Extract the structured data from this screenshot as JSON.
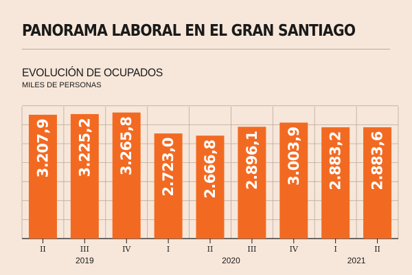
{
  "header": {
    "title": "PANORAMA LABORAL EN EL GRAN SANTIAGO",
    "subtitle": "EVOLUCIÓN DE OCUPADOS",
    "units": "MILES DE PERSONAS"
  },
  "colors": {
    "bar": "#f26a22",
    "background": "#f7e7da",
    "grid": "#b9a898",
    "text": "#1a1a1a",
    "label": "#ffffff"
  },
  "chart_data": {
    "type": "bar",
    "title": "EVOLUCIÓN DE OCUPADOS",
    "ylabel": "MILES DE PERSONAS",
    "categories": [
      "II",
      "III",
      "IV",
      "I",
      "II",
      "III",
      "IV",
      "I",
      "II"
    ],
    "values": [
      3207.9,
      3225.2,
      3265.8,
      2723.0,
      2666.8,
      2896.1,
      3003.9,
      2883.2,
      2883.6
    ],
    "value_labels": [
      "3.207,9",
      "3.225,2",
      "3.265,8",
      "2.723,0",
      "2.666,8",
      "2.896,1",
      "3.003,9",
      "2.883,2",
      "2.883,6"
    ],
    "year_groups": [
      {
        "label": "2019",
        "categories": [
          0,
          1,
          2
        ]
      },
      {
        "label": "2020",
        "categories": [
          3,
          4,
          5,
          6
        ]
      },
      {
        "label": "2021",
        "categories": [
          7,
          8
        ]
      }
    ],
    "grid": true,
    "legend": "none"
  }
}
